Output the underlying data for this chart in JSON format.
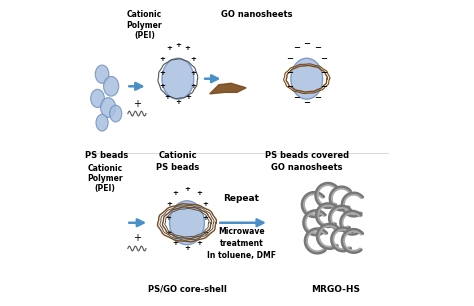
{
  "bg_color": "#ffffff",
  "blue_bead_color": "#a8bfe0",
  "blue_bead_edge": "#7090c0",
  "arrow_color": "#4a90c8",
  "go_sheet_color": "#7a4a1a",
  "shell_color": "#c8a870",
  "rgo_color": "#aaaaaa",
  "rgo_edge": "#777777",
  "text_color": "#000000",
  "labels": {
    "ps_beads": "PS beads",
    "cationic_ps": "Cationic\nPS beads",
    "ps_covered": "PS beads covered\nGO nanosheets",
    "cationic_poly_top": "Cationic\nPolymer\n(PEI)",
    "go_nanosheets": "GO nanosheets",
    "cationic_poly_bot": "Cationic\nPolymer\n(PEI)",
    "ps_go_core": "PS/GO core-shell",
    "repeat": "Repeat",
    "microwave": "Microwave\ntreatment\nIn toluene, DMF",
    "mrgo": "MRGO-HS"
  }
}
